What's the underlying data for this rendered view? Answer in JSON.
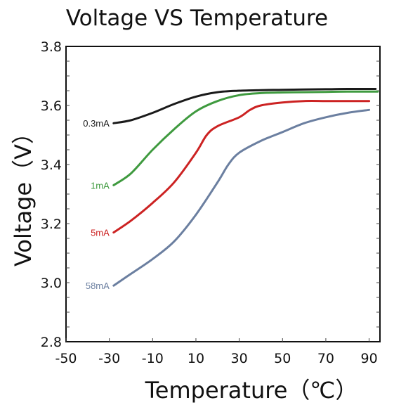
{
  "chart_data": {
    "type": "line",
    "title": "Voltage VS Temperature",
    "xlabel": "Temperature（℃）",
    "ylabel": "Voltage（V）",
    "xlim": [
      -50,
      95
    ],
    "ylim": [
      2.8,
      3.8
    ],
    "xticks": [
      "-50",
      "-30",
      "-10",
      "10",
      "30",
      "50",
      "70",
      "90"
    ],
    "yticks": [
      "2.8",
      "3.0",
      "3.2",
      "3.4",
      "3.6",
      "3.8"
    ],
    "grid": false,
    "series": [
      {
        "name": "0.3mA",
        "color": "#1a1a1a",
        "x": [
          -28,
          -20,
          -10,
          0,
          10,
          20,
          30,
          40,
          50,
          60,
          70,
          80,
          90,
          93
        ],
        "y": [
          3.54,
          3.55,
          3.575,
          3.605,
          3.63,
          3.645,
          3.65,
          3.652,
          3.653,
          3.654,
          3.655,
          3.656,
          3.656,
          3.656
        ]
      },
      {
        "name": "1mA",
        "color": "#3f9a3f",
        "x": [
          -28,
          -20,
          -10,
          0,
          10,
          20,
          30,
          40,
          50,
          60,
          70,
          80,
          90,
          94
        ],
        "y": [
          3.33,
          3.37,
          3.45,
          3.52,
          3.58,
          3.615,
          3.635,
          3.642,
          3.644,
          3.645,
          3.646,
          3.647,
          3.647,
          3.647
        ]
      },
      {
        "name": "5mA",
        "color": "#cc2222",
        "x": [
          -28,
          -20,
          -10,
          0,
          10,
          15,
          20,
          30,
          35,
          40,
          50,
          60,
          70,
          80,
          90
        ],
        "y": [
          3.17,
          3.21,
          3.27,
          3.34,
          3.44,
          3.5,
          3.53,
          3.56,
          3.585,
          3.6,
          3.61,
          3.615,
          3.615,
          3.615,
          3.615
        ]
      },
      {
        "name": "58mA",
        "color": "#6b7fa0",
        "x": [
          -28,
          -20,
          -10,
          0,
          10,
          20,
          25,
          30,
          40,
          50,
          60,
          70,
          80,
          90
        ],
        "y": [
          2.99,
          3.03,
          3.08,
          3.14,
          3.23,
          3.34,
          3.4,
          3.44,
          3.48,
          3.51,
          3.54,
          3.56,
          3.575,
          3.585
        ]
      }
    ]
  }
}
